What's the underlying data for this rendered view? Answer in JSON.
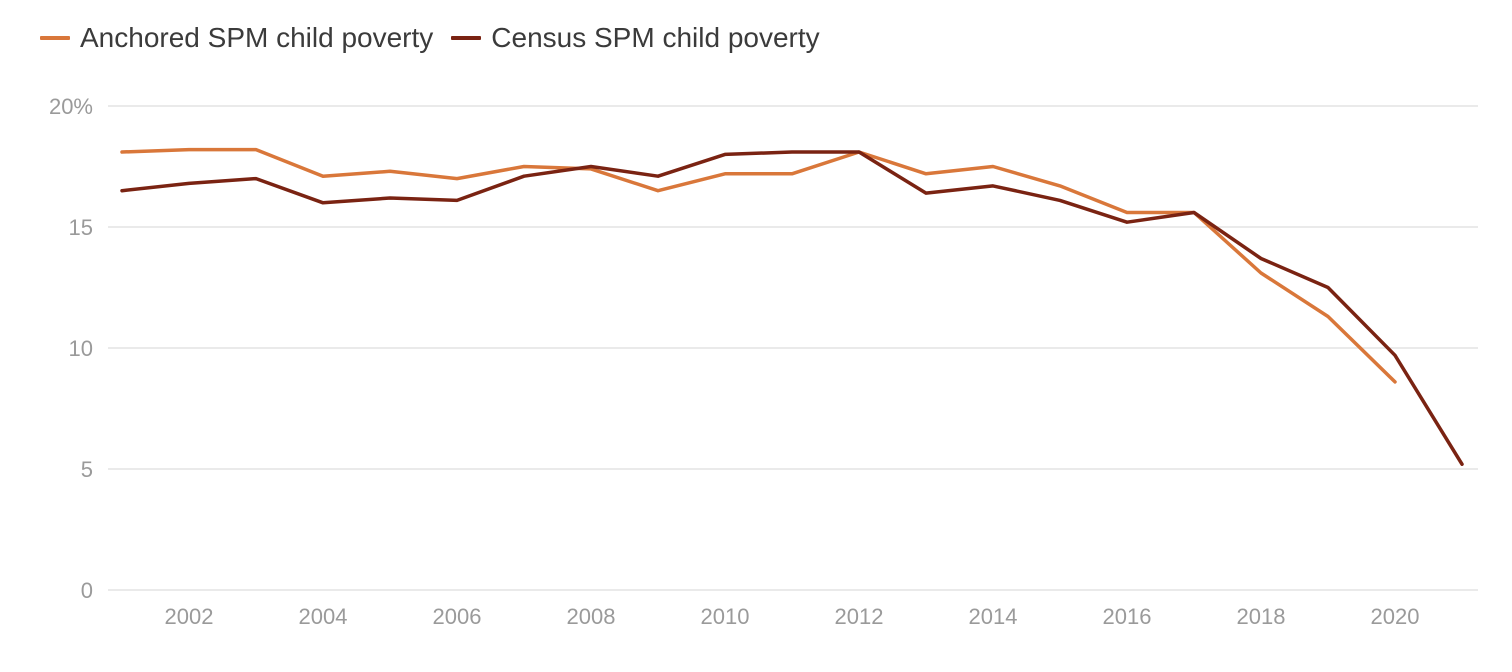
{
  "chart_data": {
    "type": "line",
    "title": "",
    "xlabel": "",
    "ylabel": "",
    "x": [
      2001,
      2002,
      2003,
      2004,
      2005,
      2006,
      2007,
      2008,
      2009,
      2010,
      2011,
      2012,
      2013,
      2014,
      2015,
      2016,
      2017,
      2018,
      2019,
      2020,
      2021
    ],
    "xlim": [
      2001,
      2021
    ],
    "ylim": [
      0,
      20
    ],
    "x_ticks": [
      2002,
      2004,
      2006,
      2008,
      2010,
      2012,
      2014,
      2016,
      2018,
      2020
    ],
    "x_tick_labels": [
      "2002",
      "2004",
      "2006",
      "2008",
      "2010",
      "2012",
      "2014",
      "2016",
      "2018",
      "2020"
    ],
    "y_ticks": [
      0,
      5,
      10,
      15,
      20
    ],
    "y_tick_labels": [
      "0",
      "5",
      "10",
      "15",
      "20%"
    ],
    "grid": "horizontal",
    "legend_position": "top-left",
    "series": [
      {
        "name": "Anchored SPM child poverty",
        "color": "#d9773a",
        "values": [
          18.1,
          18.2,
          18.2,
          17.1,
          17.3,
          17.0,
          17.5,
          17.4,
          16.5,
          17.2,
          17.2,
          18.1,
          17.2,
          17.5,
          16.7,
          15.6,
          15.6,
          13.1,
          11.3,
          8.6,
          null
        ]
      },
      {
        "name": "Census SPM child poverty",
        "color": "#7a2312",
        "values": [
          16.5,
          16.8,
          17.0,
          16.0,
          16.2,
          16.1,
          17.1,
          17.5,
          17.1,
          18.0,
          18.1,
          18.1,
          16.4,
          16.7,
          16.1,
          15.2,
          15.6,
          13.7,
          12.5,
          9.7,
          5.2
        ]
      }
    ]
  }
}
